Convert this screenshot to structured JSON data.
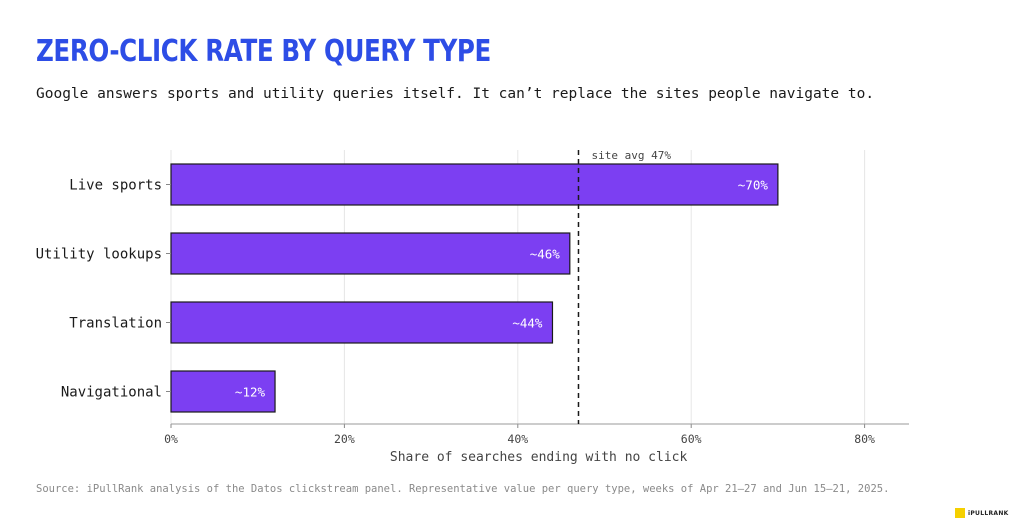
{
  "title": "ZERO-CLICK RATE BY QUERY TYPE",
  "subtitle": "Google answers sports and utility queries itself. It can’t replace the sites people navigate to.",
  "source": "Source: iPullRank analysis of the Datos clickstream panel. Representative value per query type, weeks of Apr 21–27 and Jun 15–21, 2025.",
  "logo_text": "iPULLRANK",
  "colors": {
    "bar": "#7c3ff2",
    "title": "#2d4de6",
    "grid": "#e6e6e6",
    "logo": "#f5d000"
  },
  "chart_data": {
    "type": "bar",
    "orientation": "horizontal",
    "categories": [
      "Live sports",
      "Utility lookups",
      "Translation",
      "Navigational"
    ],
    "values": [
      70,
      46,
      44,
      12
    ],
    "data_labels": [
      "~70%",
      "~46%",
      "~44%",
      "~12%"
    ],
    "xlabel": "Share of searches ending with no click",
    "xlim": [
      0,
      85
    ],
    "xticks": [
      0,
      20,
      40,
      60,
      80
    ],
    "xtick_labels": [
      "0%",
      "20%",
      "40%",
      "60%",
      "80%"
    ],
    "reference_line": {
      "value": 47,
      "label": "site avg 47%"
    },
    "grid": "vertical"
  }
}
